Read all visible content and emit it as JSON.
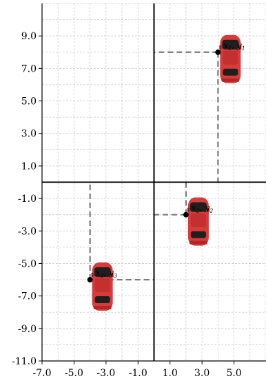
{
  "chart_data": {
    "type": "scatter",
    "title": "",
    "xlabel": "",
    "ylabel": "",
    "xlim": [
      -7,
      7
    ],
    "ylim": [
      -11,
      11
    ],
    "grid": true,
    "x_tick_values": [
      -7,
      -5,
      -3,
      -1,
      1,
      3,
      5
    ],
    "x_tick_labels": [
      "-7.0",
      "-5.0",
      "-3.0",
      "-1.0",
      "1.0",
      "3.0",
      "5.0"
    ],
    "y_tick_values": [
      9,
      7,
      5,
      3,
      1,
      -1,
      -3,
      -5,
      -7,
      -9,
      -11
    ],
    "y_tick_labels": [
      "9.0",
      "7.0",
      "5.0",
      "3.0",
      "1.0",
      "-1.0",
      "-3.0",
      "-5.0",
      "-7.0",
      "-9.0",
      "-11.0"
    ],
    "points": [
      {
        "x": 4,
        "y": 8,
        "label": "x1,y1",
        "label_base": "x",
        "label_sub": "1",
        "label_base2": "y",
        "label_sub2": "1"
      },
      {
        "x": 2,
        "y": -2,
        "label": "x2,y2",
        "label_base": "x",
        "label_sub": "2",
        "label_base2": "y",
        "label_sub2": "2"
      },
      {
        "x": -4,
        "y": -6,
        "label": "x3,y3",
        "label_base": "x",
        "label_sub": "3",
        "label_base2": "y",
        "label_sub2": "3"
      }
    ],
    "icon": "car-icon",
    "colors": {
      "car": "#d93b3b",
      "car_dark": "#8e1c1c",
      "guide": "#7a7a7a",
      "grid": "#cccccc",
      "point": "#000000"
    }
  }
}
